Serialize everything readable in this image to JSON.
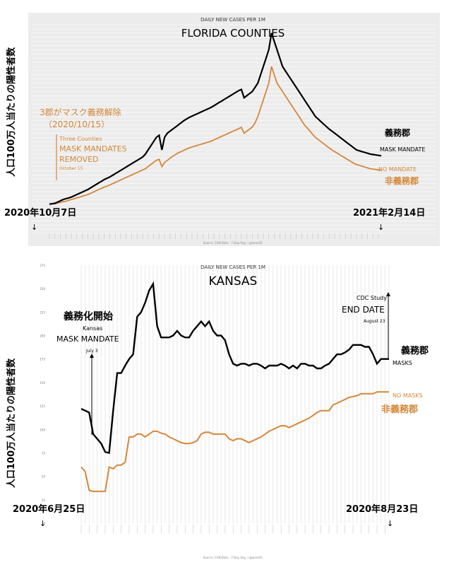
{
  "chart_data": [
    {
      "type": "line",
      "title": "FLORIDA COUNTIES",
      "subtitle": "DAILY NEW CASES PER 1M",
      "ylabel": "人口100万人当たりの陽性者数",
      "ylim": [
        0,
        1000
      ],
      "grid": true,
      "x_start_label": "2020年10月7日",
      "x_end_label": "2021年2月14日",
      "source_note": "Source: CAN Data · 7-Day Avg. | @ianmSC",
      "annotation": {
        "jp_text": "3郡がマスク義務解除",
        "jp_date": "（2020/10/15）",
        "en_small": "Three Counties",
        "en_main": "MASK MANDATES REMOVED",
        "en_date": "October 15"
      },
      "series": [
        {
          "name": "MASK MANDATE",
          "jp_name": "義務郡",
          "color": "#000000",
          "values": [
            140,
            142,
            144,
            150,
            156,
            162,
            166,
            170,
            174,
            180,
            186,
            192,
            198,
            204,
            210,
            218,
            226,
            234,
            242,
            250,
            258,
            264,
            270,
            278,
            286,
            294,
            302,
            310,
            318,
            326,
            334,
            342,
            350,
            358,
            366,
            380,
            400,
            420,
            440,
            460,
            470,
            400,
            460,
            480,
            490,
            500,
            510,
            520,
            530,
            540,
            548,
            556,
            562,
            568,
            574,
            580,
            586,
            592,
            598,
            604,
            612,
            620,
            628,
            636,
            644,
            652,
            660,
            668,
            676,
            684,
            690,
            650,
            660,
            670,
            680,
            700,
            720,
            760,
            800,
            840,
            880,
            960,
            920,
            880,
            840,
            800,
            780,
            760,
            740,
            720,
            700,
            680,
            660,
            640,
            620,
            600,
            580,
            560,
            548,
            536,
            524,
            512,
            500,
            490,
            480,
            470,
            460,
            450,
            440,
            430,
            420,
            410,
            400,
            396,
            392,
            388,
            384,
            380,
            378,
            376,
            374,
            372
          ]
        },
        {
          "name": "NO MANDATE",
          "jp_name": "非義務郡",
          "color": "#d4873a",
          "values": [
            140,
            141,
            142,
            145,
            148,
            152,
            154,
            158,
            162,
            166,
            170,
            174,
            178,
            182,
            186,
            192,
            198,
            204,
            210,
            216,
            222,
            226,
            232,
            238,
            244,
            250,
            256,
            262,
            268,
            274,
            280,
            286,
            292,
            298,
            304,
            310,
            320,
            330,
            340,
            350,
            355,
            320,
            340,
            350,
            360,
            370,
            378,
            386,
            392,
            398,
            404,
            410,
            414,
            418,
            422,
            426,
            430,
            434,
            438,
            442,
            448,
            454,
            460,
            466,
            472,
            478,
            484,
            490,
            496,
            502,
            508,
            480,
            490,
            500,
            510,
            530,
            560,
            600,
            640,
            680,
            720,
            800,
            760,
            720,
            700,
            680,
            660,
            640,
            620,
            600,
            580,
            560,
            540,
            520,
            505,
            490,
            475,
            460,
            450,
            440,
            430,
            420,
            410,
            400,
            392,
            384,
            376,
            368,
            360,
            352,
            344,
            336,
            330,
            326,
            322,
            318,
            314,
            310,
            308,
            306,
            304,
            302
          ]
        }
      ]
    },
    {
      "type": "line",
      "title": "KANSAS",
      "subtitle": "DAILY NEW CASES PER 1M",
      "ylabel": "人口100万人当たりの陽性者数",
      "ylim": [
        0,
        275
      ],
      "grid": true,
      "x_start_label": "2020年6月25日",
      "x_end_label": "2020年8月23日",
      "source_note": "Source: CAN Data · 7-Day Avg. | @ianmSC",
      "annotations": {
        "left": {
          "jp_text": "義務化開始",
          "en_small": "Kansas",
          "en_main": "MASK MANDATE",
          "en_date": "July 3"
        },
        "right": {
          "en_small": "CDC Study",
          "en_main": "END DATE",
          "en_date": "August 23"
        }
      },
      "series": [
        {
          "name": "MASKS",
          "jp_name": "義務郡",
          "color": "#000000",
          "values": [
            122,
            120,
            118,
            95,
            90,
            85,
            76,
            75,
            120,
            160,
            160,
            168,
            175,
            180,
            220,
            225,
            235,
            248,
            255,
            210,
            198,
            198,
            198,
            200,
            205,
            200,
            198,
            198,
            205,
            210,
            215,
            210,
            215,
            205,
            200,
            200,
            195,
            180,
            170,
            168,
            170,
            170,
            168,
            170,
            170,
            168,
            165,
            168,
            168,
            168,
            170,
            168,
            165,
            168,
            165,
            170,
            170,
            168,
            168,
            165,
            165,
            168,
            170,
            175,
            180,
            180,
            182,
            185,
            190,
            190,
            190,
            188,
            188,
            180,
            170,
            175,
            175,
            175
          ]
        },
        {
          "name": "NO MASKS",
          "jp_name": "非義務郡",
          "color": "#d4873a",
          "values": [
            60,
            55,
            35,
            34,
            34,
            34,
            34,
            60,
            58,
            62,
            62,
            65,
            92,
            92,
            95,
            95,
            92,
            95,
            98,
            98,
            96,
            95,
            92,
            90,
            88,
            86,
            85,
            85,
            86,
            88,
            95,
            97,
            97,
            95,
            95,
            95,
            95,
            90,
            88,
            90,
            90,
            88,
            86,
            88,
            90,
            92,
            95,
            98,
            100,
            102,
            104,
            104,
            102,
            104,
            106,
            108,
            110,
            112,
            115,
            118,
            120,
            120,
            120,
            126,
            128,
            130,
            132,
            134,
            135,
            136,
            138,
            138,
            138,
            138,
            140,
            140,
            140,
            140
          ]
        }
      ]
    }
  ]
}
